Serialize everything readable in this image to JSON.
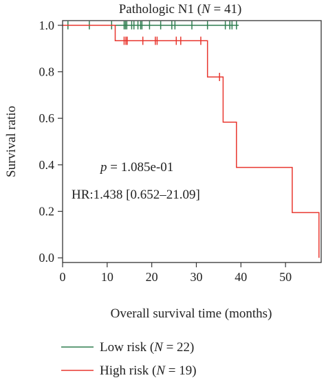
{
  "chart_data": {
    "type": "line",
    "title_prefix": "Pathologic N1 (",
    "title_n": "N",
    "title_suffix": " = 41)",
    "xlabel": "Overall survival time (months)",
    "ylabel": "Survival ratio",
    "xlim": [
      0,
      58
    ],
    "ylim": [
      -0.02,
      1.02
    ],
    "xticks": [
      0,
      10,
      20,
      30,
      40,
      50
    ],
    "xtick_labels": [
      "0",
      "10",
      "20",
      "30",
      "40",
      "50"
    ],
    "yticks": [
      0.0,
      0.2,
      0.4,
      0.6,
      0.8,
      1.0
    ],
    "ytick_labels": [
      "0.0",
      "0.2",
      "0.4",
      "0.6",
      "0.8",
      "1.0"
    ],
    "grid": false,
    "legend_position": "bottom",
    "annotation_p_label": "p",
    "annotation_p_value": " = 1.085e-01",
    "annotation_hr": "HR:1.438 [0.652–21.09]",
    "series": [
      {
        "name_prefix": "Low risk (",
        "name_n": "N",
        "name_suffix": " = 22)",
        "color": "#2e7d4f",
        "steps": [
          [
            0,
            1.0
          ],
          [
            39.5,
            1.0
          ]
        ],
        "censor_times": [
          1.2,
          6,
          11,
          13.8,
          14.1,
          14.4,
          15.5,
          16,
          16.9,
          17.5,
          17.8,
          19.5,
          22,
          24.5,
          25.2,
          29,
          32.5,
          36.5,
          37.5,
          38,
          39
        ]
      },
      {
        "name_prefix": "High risk (",
        "name_n": "N",
        "name_suffix": " = 19)",
        "color": "#e8362e",
        "steps": [
          [
            0,
            1.0
          ],
          [
            11.8,
            1.0
          ],
          [
            11.8,
            0.9333
          ],
          [
            32.5,
            0.9333
          ],
          [
            32.5,
            0.7778
          ],
          [
            36.0,
            0.7778
          ],
          [
            36.0,
            0.5833
          ],
          [
            39.0,
            0.5833
          ],
          [
            39.0,
            0.3889
          ],
          [
            51.5,
            0.3889
          ],
          [
            51.5,
            0.1944
          ],
          [
            57.5,
            0.1944
          ],
          [
            57.5,
            0.0
          ]
        ],
        "censor_times": [
          13.8,
          14.2,
          14.5,
          18,
          20.8,
          21.2,
          25.5,
          26.5,
          31,
          35.2
        ]
      }
    ]
  }
}
